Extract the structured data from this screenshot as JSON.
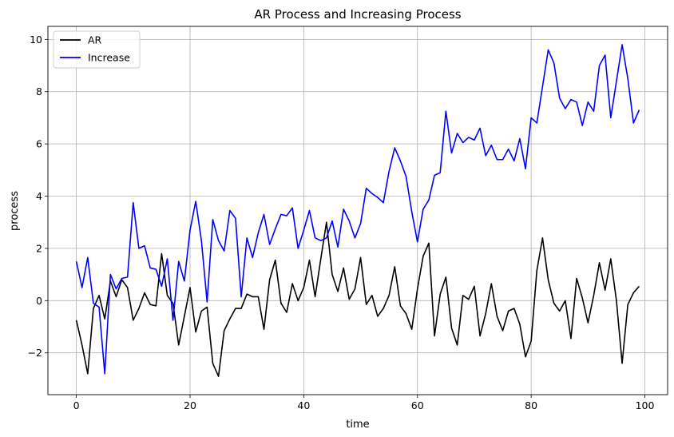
{
  "chart_data": {
    "type": "line",
    "title": "AR Process and Increasing Process",
    "xlabel": "time",
    "ylabel": "process",
    "xlim": [
      -5,
      104
    ],
    "ylim": [
      -3.6,
      10.5
    ],
    "xticks": [
      0,
      20,
      40,
      60,
      80,
      100
    ],
    "yticks": [
      -2,
      0,
      2,
      4,
      6,
      8,
      10
    ],
    "xtick_labels": [
      "0",
      "20",
      "40",
      "60",
      "80",
      "100"
    ],
    "ytick_labels": [
      "−2",
      "0",
      "2",
      "4",
      "6",
      "8",
      "10"
    ],
    "grid": true,
    "legend_position": "top-left",
    "series": [
      {
        "name": "AR",
        "color": "#000000",
        "x": [
          0,
          1,
          2,
          3,
          4,
          5,
          6,
          7,
          8,
          9,
          10,
          11,
          12,
          13,
          14,
          15,
          16,
          17,
          18,
          19,
          20,
          21,
          22,
          23,
          24,
          25,
          26,
          27,
          28,
          29,
          30,
          31,
          32,
          33,
          34,
          35,
          36,
          37,
          38,
          39,
          40,
          41,
          42,
          43,
          44,
          45,
          46,
          47,
          48,
          49,
          50,
          51,
          52,
          53,
          54,
          55,
          56,
          57,
          58,
          59,
          60,
          61,
          62,
          63,
          64,
          65,
          66,
          67,
          68,
          69,
          70,
          71,
          72,
          73,
          74,
          75,
          76,
          77,
          78,
          79,
          80,
          81,
          82,
          83,
          84,
          85,
          86,
          87,
          88,
          89,
          90,
          91,
          92,
          93,
          94,
          95,
          96,
          97,
          98,
          99
        ],
        "values": [
          -0.75,
          -1.7,
          -2.8,
          -0.3,
          0.2,
          -0.7,
          0.75,
          0.15,
          0.8,
          0.5,
          -0.75,
          -0.3,
          0.3,
          -0.15,
          -0.2,
          1.8,
          0.2,
          -0.1,
          -1.7,
          -0.6,
          0.5,
          -1.2,
          -0.4,
          -0.25,
          -2.4,
          -2.9,
          -1.15,
          -0.7,
          -0.3,
          -0.3,
          0.25,
          0.15,
          0.15,
          -1.1,
          0.8,
          1.55,
          -0.1,
          -0.45,
          0.65,
          0.0,
          0.5,
          1.55,
          0.15,
          1.6,
          3.0,
          1.0,
          0.35,
          1.25,
          0.05,
          0.45,
          1.65,
          -0.15,
          0.2,
          -0.6,
          -0.3,
          0.2,
          1.3,
          -0.2,
          -0.5,
          -1.1,
          0.45,
          1.7,
          2.2,
          -1.35,
          0.25,
          0.9,
          -1.05,
          -1.7,
          0.2,
          0.05,
          0.55,
          -1.35,
          -0.5,
          0.65,
          -0.6,
          -1.15,
          -0.4,
          -0.3,
          -0.9,
          -2.15,
          -1.55,
          1.15,
          2.4,
          0.8,
          -0.1,
          -0.4,
          0.0,
          -1.45,
          0.85,
          0.1,
          -0.85,
          0.2,
          1.45,
          0.4,
          1.6,
          0.0,
          -2.4,
          -0.15,
          0.3,
          0.55
        ]
      },
      {
        "name": "Increase",
        "color": "#0000ff",
        "x": [
          0,
          1,
          2,
          3,
          4,
          5,
          6,
          7,
          8,
          9,
          10,
          11,
          12,
          13,
          14,
          15,
          16,
          17,
          18,
          19,
          20,
          21,
          22,
          23,
          24,
          25,
          26,
          27,
          28,
          29,
          30,
          31,
          32,
          33,
          34,
          35,
          36,
          37,
          38,
          39,
          40,
          41,
          42,
          43,
          44,
          45,
          46,
          47,
          48,
          49,
          50,
          51,
          52,
          53,
          54,
          55,
          56,
          57,
          58,
          59,
          60,
          61,
          62,
          63,
          64,
          65,
          66,
          67,
          68,
          69,
          70,
          71,
          72,
          73,
          74,
          75,
          76,
          77,
          78,
          79,
          80,
          81,
          82,
          83,
          84,
          85,
          86,
          87,
          88,
          89,
          90,
          91,
          92,
          93,
          94,
          95,
          96,
          97,
          98,
          99
        ],
        "values": [
          1.5,
          0.5,
          1.65,
          -0.1,
          -0.25,
          -2.8,
          1.0,
          0.45,
          0.85,
          0.9,
          3.75,
          2.0,
          2.1,
          1.25,
          1.2,
          0.55,
          1.6,
          -0.75,
          1.5,
          0.75,
          2.7,
          3.8,
          2.3,
          -0.05,
          3.1,
          2.3,
          1.9,
          3.45,
          3.15,
          0.15,
          2.4,
          1.65,
          2.6,
          3.3,
          2.15,
          2.75,
          3.3,
          3.25,
          3.55,
          2.0,
          2.7,
          3.45,
          2.4,
          2.3,
          2.4,
          3.05,
          2.05,
          3.5,
          3.05,
          2.4,
          2.95,
          4.3,
          4.1,
          3.95,
          3.75,
          4.95,
          5.85,
          5.35,
          4.75,
          3.4,
          2.25,
          3.5,
          3.85,
          4.8,
          4.9,
          7.25,
          5.65,
          6.4,
          6.05,
          6.25,
          6.15,
          6.6,
          5.55,
          5.95,
          5.4,
          5.4,
          5.8,
          5.35,
          6.2,
          5.05,
          7.0,
          6.8,
          8.2,
          9.6,
          9.1,
          7.75,
          7.35,
          7.7,
          7.6,
          6.7,
          7.6,
          7.25,
          9.0,
          9.4,
          7.0,
          8.4,
          9.8,
          8.5,
          6.8,
          7.3
        ]
      }
    ]
  }
}
